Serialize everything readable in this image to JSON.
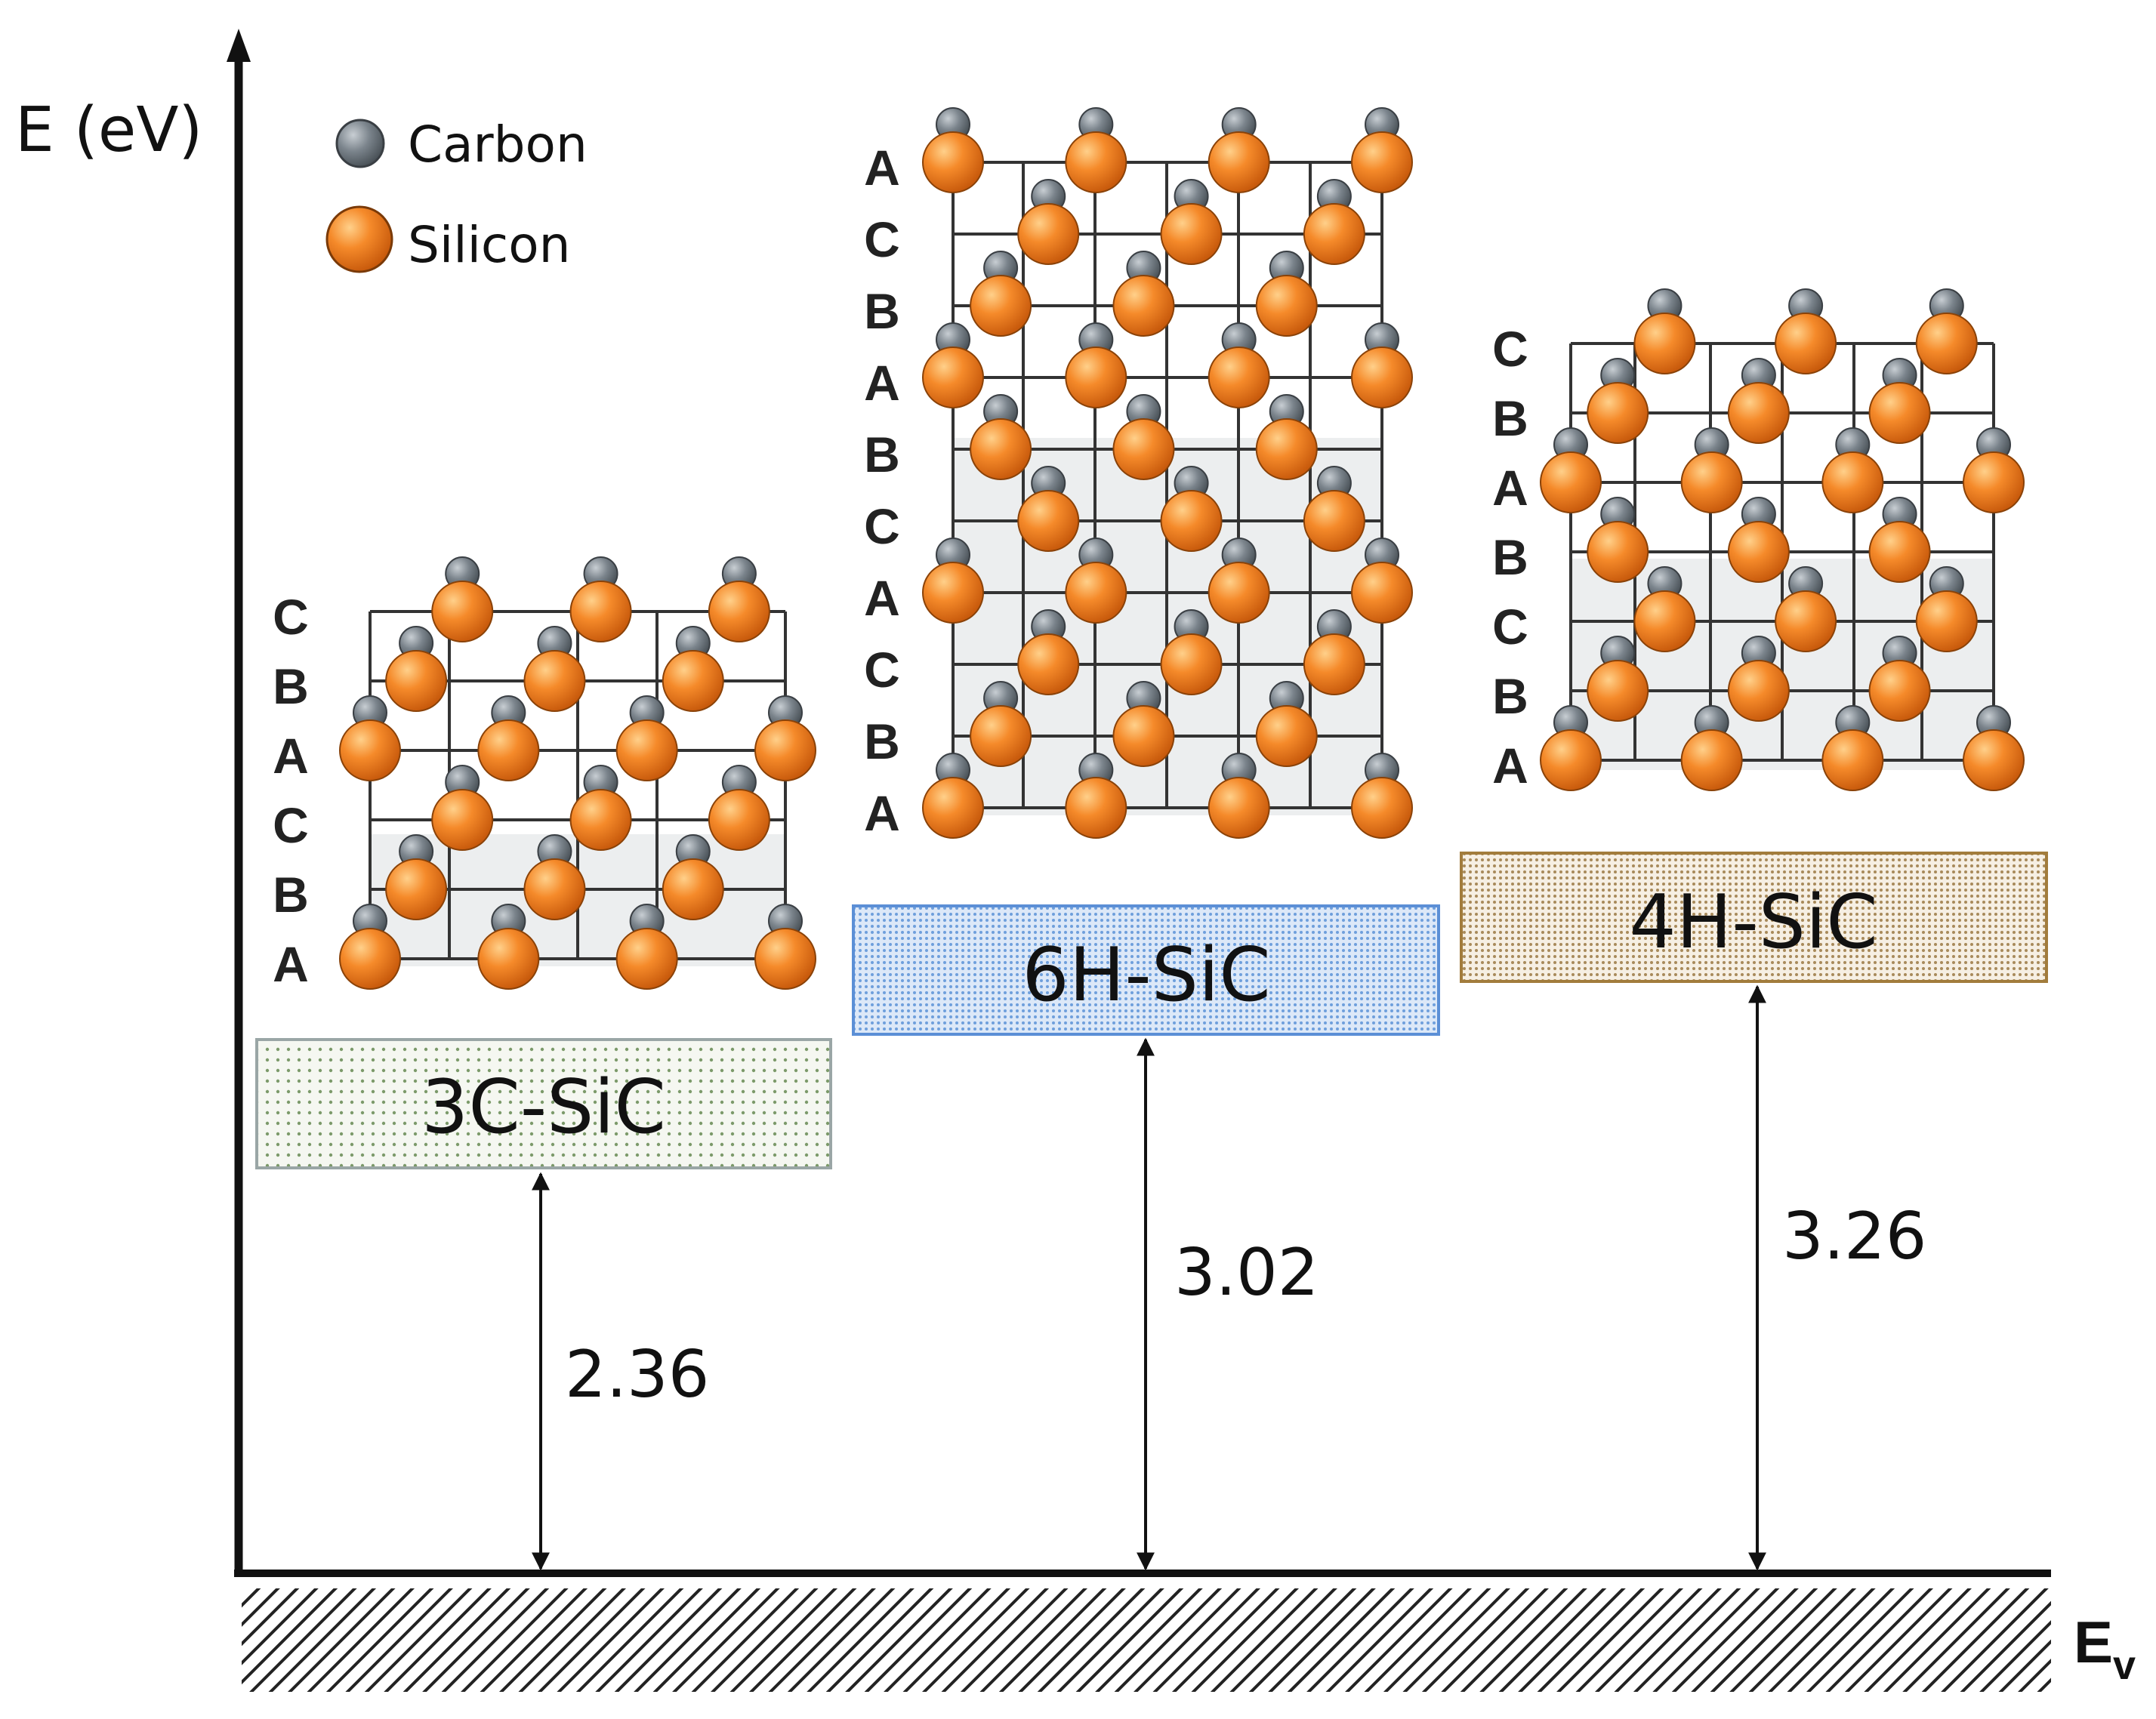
{
  "axis": {
    "y_label": "E (eV)",
    "baseline_label_main": "E",
    "baseline_label_sub": "v"
  },
  "legend": [
    {
      "name": "Carbon",
      "color": "#6f7880"
    },
    {
      "name": "Silicon",
      "color": "#f07a1e"
    }
  ],
  "polytypes": [
    {
      "name": "3C-SiC",
      "gap": "2.36",
      "layers": [
        "C",
        "B",
        "A",
        "C",
        "B",
        "A"
      ],
      "box_fill": "#f3f6ee",
      "box_stroke": "#9aa6a6",
      "dot_color": "#7c9a6a"
    },
    {
      "name": "6H-SiC",
      "gap": "3.02",
      "layers": [
        "A",
        "C",
        "B",
        "A",
        "B",
        "C",
        "A",
        "C",
        "B",
        "A"
      ],
      "box_fill": "#d4e3f6",
      "box_stroke": "#5b8fd6",
      "dot_color": "#6e9fdc"
    },
    {
      "name": "4H-SiC",
      "gap": "3.26",
      "layers": [
        "C",
        "B",
        "A",
        "B",
        "C",
        "B",
        "A"
      ],
      "box_fill": "#f3eadb",
      "box_stroke": "#a27c3c",
      "dot_color": "#a88a5a"
    }
  ]
}
